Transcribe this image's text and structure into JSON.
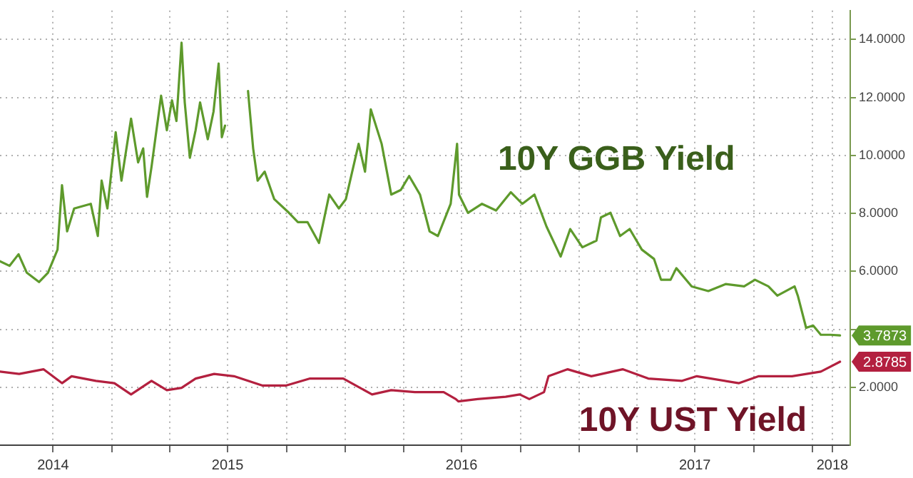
{
  "chart_data": {
    "type": "line",
    "xlim": [
      "2014-07-10",
      "2018-03-01"
    ],
    "xticks": [
      {
        "value": "2014-10-01",
        "label": "2014"
      },
      {
        "value": "2015-01-01",
        "label": null
      },
      {
        "value": "2015-04-01",
        "label": null
      },
      {
        "value": "2015-07-01",
        "label": "2015"
      },
      {
        "value": "2015-10-01",
        "label": null
      },
      {
        "value": "2016-01-01",
        "label": null
      },
      {
        "value": "2016-04-01",
        "label": null
      },
      {
        "value": "2016-07-01",
        "label": "2016"
      },
      {
        "value": "2016-10-01",
        "label": null
      },
      {
        "value": "2017-01-01",
        "label": null
      },
      {
        "value": "2017-04-01",
        "label": null
      },
      {
        "value": "2017-07-01",
        "label": "2017"
      },
      {
        "value": "2017-10-01",
        "label": null
      },
      {
        "value": "2018-01-01",
        "label": null
      },
      {
        "value": "2018-02-01",
        "label": "2018"
      }
    ],
    "ylim": [
      0,
      15
    ],
    "yticks": [
      {
        "value": 2,
        "label": "2.0000"
      },
      {
        "value": 4,
        "label": null
      },
      {
        "value": 6,
        "label": "6.0000"
      },
      {
        "value": 8,
        "label": "8.0000"
      },
      {
        "value": 10,
        "label": "10.0000"
      },
      {
        "value": 12,
        "label": "12.0000"
      },
      {
        "value": 14,
        "label": "14.0000"
      }
    ],
    "grid": true,
    "legend": false,
    "marker": "none",
    "line_style": "solid",
    "series": [
      {
        "name": "10Y GGB Yield",
        "color": "#5e9a2c",
        "x": [
          "2014-07-10",
          "2014-07-25",
          "2014-08-08",
          "2014-08-21",
          "2014-09-09",
          "2014-09-23",
          "2014-10-08",
          "2014-10-15",
          "2014-10-23",
          "2014-11-03",
          "2014-11-29",
          "2014-12-10",
          "2014-12-16",
          "2014-12-25",
          "2015-01-07",
          "2015-01-16",
          "2015-01-31",
          "2015-02-11",
          "2015-02-19",
          "2015-02-25",
          "2015-03-04",
          "2015-03-19",
          "2015-03-28",
          "2015-04-05",
          "2015-04-12",
          "2015-04-20",
          "2015-04-25",
          "2015-05-03",
          "2015-05-12",
          "2015-05-19",
          "2015-05-31",
          "2015-06-09",
          "2015-06-17",
          "2015-06-22",
          "2015-06-27",
          "2015-07-15",
          "2015-08-02",
          "2015-08-10",
          "2015-08-17",
          "2015-08-28",
          "2015-09-12",
          "2015-10-05",
          "2015-10-19",
          "2015-11-03",
          "2015-11-21",
          "2015-12-07",
          "2015-12-22",
          "2016-01-02",
          "2016-01-22",
          "2016-02-01",
          "2016-02-10",
          "2016-02-27",
          "2016-03-13",
          "2016-03-28",
          "2016-04-10",
          "2016-04-27",
          "2016-05-12",
          "2016-05-25",
          "2016-06-14",
          "2016-06-24",
          "2016-06-27",
          "2016-07-11",
          "2016-08-02",
          "2016-08-24",
          "2016-09-16",
          "2016-10-04",
          "2016-10-23",
          "2016-11-11",
          "2016-12-03",
          "2016-12-18",
          "2017-01-06",
          "2017-01-28",
          "2017-02-04",
          "2017-02-19",
          "2017-03-06",
          "2017-03-21",
          "2017-04-09",
          "2017-04-28",
          "2017-05-09",
          "2017-05-24",
          "2017-06-02",
          "2017-06-26",
          "2017-07-22",
          "2017-08-18",
          "2017-09-16",
          "2017-10-03",
          "2017-10-24",
          "2017-11-07",
          "2017-12-04",
          "2017-12-09",
          "2017-12-22",
          "2018-01-02",
          "2018-01-14",
          "2018-01-29",
          "2018-02-13"
        ],
        "values": [
          6.35,
          6.19,
          6.59,
          5.95,
          5.63,
          5.95,
          6.75,
          8.97,
          7.38,
          8.17,
          8.33,
          7.22,
          9.13,
          8.17,
          10.8,
          9.13,
          11.27,
          9.76,
          10.24,
          8.57,
          9.6,
          12.06,
          10.87,
          11.9,
          11.19,
          13.89,
          11.83,
          9.92,
          10.87,
          11.83,
          10.56,
          11.51,
          13.17,
          10.63,
          11.03,
          null,
          12.22,
          10.24,
          9.13,
          9.44,
          8.49,
          8.02,
          7.7,
          7.7,
          6.98,
          8.65,
          8.17,
          8.49,
          10.4,
          9.44,
          11.59,
          10.4,
          8.65,
          8.81,
          9.29,
          8.65,
          7.38,
          7.22,
          8.33,
          10.4,
          8.65,
          8.02,
          8.33,
          8.1,
          8.73,
          8.33,
          8.65,
          7.54,
          6.51,
          7.46,
          6.83,
          7.06,
          7.86,
          8.02,
          7.22,
          7.46,
          6.75,
          6.43,
          5.71,
          5.71,
          6.11,
          5.48,
          5.32,
          5.56,
          5.48,
          5.71,
          5.48,
          5.16,
          5.48,
          5.16,
          4.05,
          4.13,
          3.81,
          3.81,
          3.79
        ]
      },
      {
        "name": "10Y UST Yield",
        "color": "#b3203f",
        "x": [
          "2014-07-10",
          "2014-08-09",
          "2014-09-16",
          "2014-10-15",
          "2014-10-30",
          "2014-12-07",
          "2015-01-05",
          "2015-01-31",
          "2015-03-04",
          "2015-03-28",
          "2015-04-20",
          "2015-05-12",
          "2015-06-10",
          "2015-07-11",
          "2015-08-24",
          "2015-10-01",
          "2015-11-07",
          "2015-12-29",
          "2016-02-12",
          "2016-03-13",
          "2016-04-19",
          "2016-06-03",
          "2016-06-22",
          "2016-06-26",
          "2016-07-26",
          "2016-09-08",
          "2016-09-30",
          "2016-10-15",
          "2016-11-07",
          "2016-11-14",
          "2016-12-14",
          "2017-01-20",
          "2017-03-10",
          "2017-04-19",
          "2017-06-11",
          "2017-07-04",
          "2017-09-08",
          "2017-10-09",
          "2017-11-30",
          "2018-01-14",
          "2018-02-13"
        ],
        "values": [
          2.54,
          2.46,
          2.62,
          2.14,
          2.38,
          2.22,
          2.14,
          1.75,
          2.22,
          1.9,
          1.98,
          2.3,
          2.46,
          2.38,
          2.06,
          2.06,
          2.3,
          2.3,
          1.75,
          1.9,
          1.83,
          1.83,
          1.59,
          1.51,
          1.59,
          1.67,
          1.75,
          1.59,
          1.83,
          2.38,
          2.62,
          2.38,
          2.62,
          2.3,
          2.22,
          2.38,
          2.14,
          2.38,
          2.38,
          2.54,
          2.88
        ]
      }
    ],
    "annotations": [
      {
        "text": "3.7873",
        "x": "2018-02-13",
        "y": 3.7873
      },
      {
        "text": "2.8785",
        "x": "2018-02-13",
        "y": 2.8785
      }
    ]
  }
}
